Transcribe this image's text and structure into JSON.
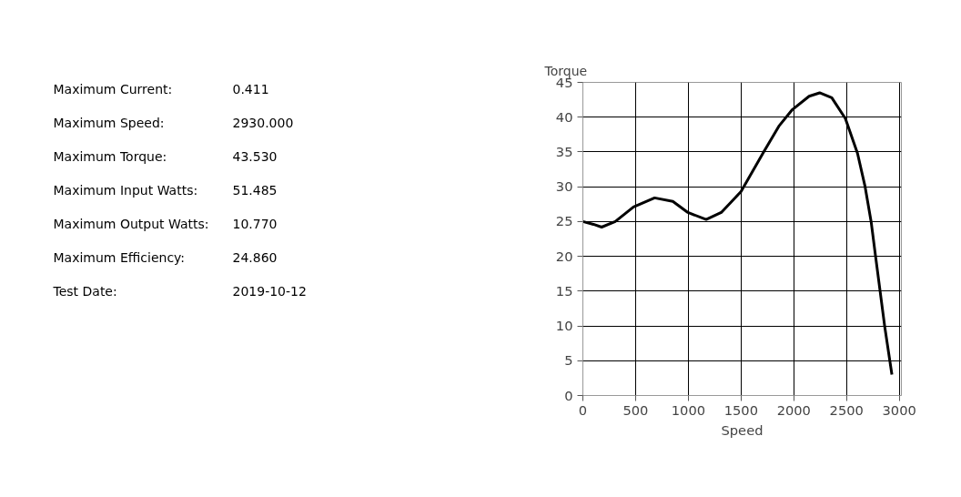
{
  "chart_data": [
    {
      "type": "other",
      "annotations": [
        "Maximum Current:",
        "0.411",
        "Maximum Speed:",
        "2930.000",
        "Maximum Torque:",
        "43.530",
        "Maximum Input Watts:",
        "51.485",
        "Maximum Output Watts:",
        "10.770",
        "Maximum Efficiency:",
        "24.860",
        "Test Date:",
        "2019-10-12"
      ]
    },
    {
      "type": "line",
      "xlabel": "Speed",
      "ylabel": "Torque",
      "x": [
        0,
        100,
        178,
        307,
        480,
        680,
        853,
        996,
        1169,
        1312,
        1499,
        1714,
        1858,
        1987,
        2145,
        2245,
        2360,
        2489,
        2604,
        2676,
        2733,
        2776,
        2819,
        2862,
        2930
      ],
      "series": [
        {
          "color": "#000000",
          "values": [
            25.0,
            24.6,
            24.2,
            25.0,
            27.1,
            28.4,
            27.9,
            26.3,
            25.3,
            26.3,
            29.3,
            35.0,
            38.7,
            41.1,
            43.0,
            43.5,
            42.8,
            39.8,
            34.8,
            30.0,
            25.0,
            19.9,
            14.9,
            9.9,
            3.0
          ]
        }
      ],
      "xlim": [
        0,
        3020
      ],
      "ylim": [
        0,
        45
      ],
      "xticks": [
        0,
        500,
        1000,
        1500,
        2000,
        2500,
        3000
      ],
      "yticks": [
        0,
        5,
        10,
        15,
        20,
        25,
        30,
        35,
        40,
        45
      ],
      "grid": true,
      "marker": "none",
      "line_style": "solid"
    }
  ]
}
